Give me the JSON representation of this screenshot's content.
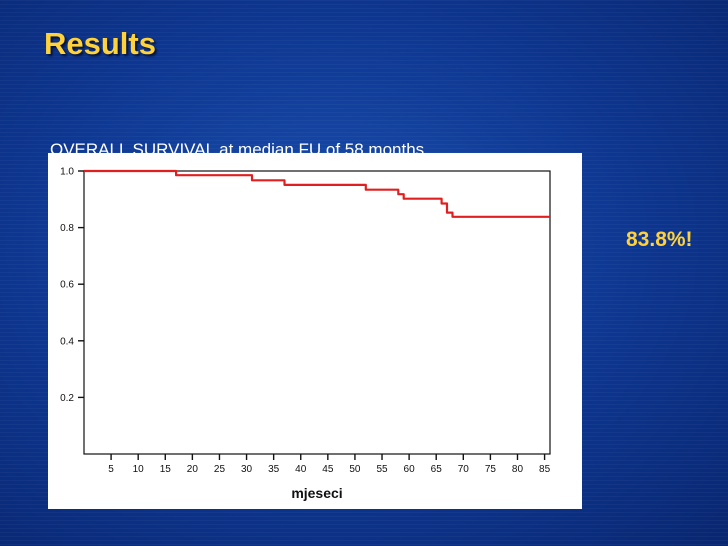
{
  "slide": {
    "title": "Results",
    "subtitle": "OVERALL SURVIVAL at median FU of 58 months",
    "callout": "83.8%!"
  },
  "colors": {
    "title": "#ffd23a",
    "callout": "#ffd23a",
    "curve": "#e02020",
    "background": "#0d3690"
  },
  "chart_data": {
    "type": "line",
    "xlabel": "mjeseci",
    "ylabel": "",
    "xlim": [
      0,
      86
    ],
    "ylim": [
      0,
      1.0
    ],
    "xticks": [
      5,
      10,
      15,
      20,
      25,
      30,
      35,
      40,
      45,
      50,
      55,
      60,
      65,
      70,
      75,
      80,
      85
    ],
    "yticks": [
      0.2,
      0.4,
      0.6,
      0.8,
      1.0
    ],
    "ytick_labels": [
      "0.2",
      "0.4",
      "0.6",
      "0.8",
      "1.0"
    ],
    "grid": false,
    "series": [
      {
        "step": true,
        "color": "#e02020",
        "x": [
          0,
          17,
          17,
          31,
          31,
          37,
          37,
          52,
          52,
          58,
          58,
          59,
          59,
          66,
          66,
          67,
          67,
          68,
          68,
          86
        ],
        "y": [
          1.0,
          1.0,
          0.985,
          0.985,
          0.967,
          0.967,
          0.951,
          0.951,
          0.934,
          0.934,
          0.918,
          0.918,
          0.902,
          0.902,
          0.885,
          0.885,
          0.853,
          0.853,
          0.838,
          0.838
        ]
      }
    ]
  }
}
